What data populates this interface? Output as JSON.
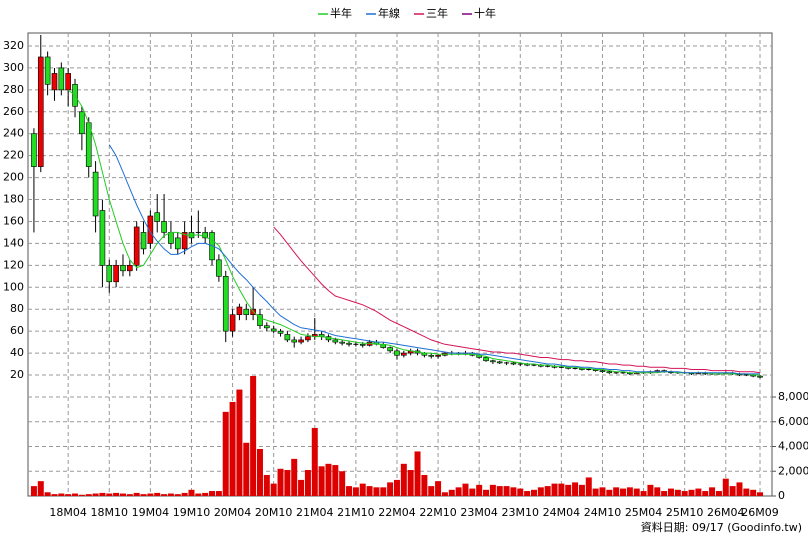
{
  "chart_data": {
    "type": "candlestick",
    "note": "資料日期: 09/17  (Goodinfo.tw)",
    "up_color": "#ee0000",
    "down_color": "#22dd22",
    "volume_color": "#dd0000",
    "grid": true,
    "categories": [
      null,
      null,
      null,
      null,
      null,
      "18M04",
      null,
      null,
      null,
      null,
      null,
      "18M10",
      null,
      null,
      null,
      null,
      null,
      "19M04",
      null,
      null,
      null,
      null,
      null,
      "19M10",
      null,
      null,
      null,
      null,
      null,
      "20M04",
      null,
      null,
      null,
      null,
      null,
      "20M10",
      null,
      null,
      null,
      null,
      null,
      "21M04",
      null,
      null,
      null,
      null,
      null,
      "21M10",
      null,
      null,
      null,
      null,
      null,
      "22M04",
      null,
      null,
      null,
      null,
      null,
      "22M10",
      null,
      null,
      null,
      null,
      null,
      "23M04",
      null,
      null,
      null,
      null,
      null,
      "23M10",
      null,
      null,
      null,
      null,
      null,
      "24M04",
      null,
      null,
      null,
      null,
      null,
      "24M10",
      null,
      null,
      null,
      null,
      null,
      "25M04",
      null,
      null,
      null,
      null,
      null,
      "25M10",
      null,
      null,
      null,
      null,
      null,
      "26M04",
      null,
      null,
      null,
      null,
      "26M09"
    ],
    "candles": [
      [
        240,
        245,
        150,
        210
      ],
      [
        210,
        330,
        205,
        310
      ],
      [
        310,
        315,
        275,
        285
      ],
      [
        280,
        300,
        270,
        295
      ],
      [
        300,
        305,
        275,
        280
      ],
      [
        280,
        300,
        265,
        295
      ],
      [
        285,
        290,
        255,
        265
      ],
      [
        260,
        265,
        225,
        240
      ],
      [
        250,
        255,
        200,
        210
      ],
      [
        205,
        215,
        150,
        165
      ],
      [
        170,
        180,
        100,
        120
      ],
      [
        120,
        125,
        95,
        105
      ],
      [
        105,
        125,
        100,
        120
      ],
      [
        120,
        130,
        110,
        115
      ],
      [
        115,
        125,
        110,
        120
      ],
      [
        120,
        160,
        115,
        155
      ],
      [
        150,
        160,
        130,
        135
      ],
      [
        140,
        170,
        135,
        165
      ],
      [
        168,
        185,
        150,
        160
      ],
      [
        160,
        185,
        145,
        150
      ],
      [
        150,
        160,
        135,
        140
      ],
      [
        145,
        150,
        130,
        135
      ],
      [
        135,
        160,
        130,
        150
      ],
      [
        150,
        165,
        140,
        145
      ],
      [
        150,
        170,
        145,
        150
      ],
      [
        150,
        155,
        140,
        145
      ],
      [
        150,
        152,
        120,
        125
      ],
      [
        125,
        130,
        105,
        110
      ],
      [
        110,
        115,
        50,
        60
      ],
      [
        60,
        80,
        55,
        75
      ],
      [
        75,
        85,
        70,
        82
      ],
      [
        80,
        85,
        70,
        75
      ],
      [
        75,
        100,
        70,
        80
      ],
      [
        75,
        80,
        62,
        65
      ],
      [
        65,
        68,
        60,
        63
      ],
      [
        62,
        65,
        58,
        60
      ],
      [
        60,
        62,
        55,
        58
      ],
      [
        57,
        60,
        50,
        52
      ],
      [
        52,
        55,
        45,
        50
      ],
      [
        50,
        55,
        48,
        52
      ],
      [
        52,
        58,
        50,
        55
      ],
      [
        55,
        72,
        52,
        57
      ],
      [
        57,
        60,
        52,
        55
      ],
      [
        55,
        57,
        50,
        52
      ],
      [
        52,
        54,
        48,
        50
      ],
      [
        50,
        52,
        47,
        49
      ],
      [
        49,
        51,
        46,
        48
      ],
      [
        48,
        50,
        46,
        48
      ],
      [
        48,
        50,
        45,
        47
      ],
      [
        47,
        52,
        46,
        50
      ],
      [
        50,
        52,
        47,
        48
      ],
      [
        48,
        50,
        44,
        45
      ],
      [
        45,
        46,
        40,
        42
      ],
      [
        42,
        44,
        34,
        38
      ],
      [
        38,
        42,
        36,
        40
      ],
      [
        40,
        44,
        38,
        42
      ],
      [
        42,
        44,
        38,
        40
      ],
      [
        40,
        41,
        36,
        38
      ],
      [
        38,
        40,
        35,
        37
      ],
      [
        37,
        39,
        35,
        38
      ],
      [
        38,
        41,
        37,
        40
      ],
      [
        40,
        42,
        38,
        40
      ],
      [
        40,
        41,
        38,
        39
      ],
      [
        39,
        42,
        38,
        40
      ],
      [
        40,
        41,
        37,
        38
      ],
      [
        38,
        39,
        35,
        36
      ],
      [
        36,
        37,
        32,
        33
      ],
      [
        33,
        34,
        30,
        32
      ],
      [
        32,
        33,
        30,
        31
      ],
      [
        31,
        32,
        29,
        31
      ],
      [
        31,
        32,
        29,
        30
      ],
      [
        30,
        31,
        28,
        30
      ],
      [
        30,
        31,
        28,
        29
      ],
      [
        29,
        30,
        28,
        29
      ],
      [
        29,
        30,
        27,
        28
      ],
      [
        28,
        29,
        27,
        28
      ],
      [
        28,
        29,
        26,
        27
      ],
      [
        27,
        28,
        26,
        27
      ],
      [
        27,
        28,
        25,
        26
      ],
      [
        26,
        27,
        25,
        26
      ],
      [
        26,
        27,
        24,
        25
      ],
      [
        25,
        26,
        24,
        25
      ],
      [
        25,
        26,
        23,
        24
      ],
      [
        24,
        25,
        22,
        23
      ],
      [
        23,
        24,
        21,
        22
      ],
      [
        22,
        23,
        21,
        22
      ],
      [
        22,
        23,
        21,
        22
      ],
      [
        22,
        23,
        20,
        21
      ],
      [
        21,
        23,
        21,
        22
      ],
      [
        22,
        23,
        21,
        22
      ],
      [
        22,
        24,
        21,
        23
      ],
      [
        23,
        25,
        22,
        24
      ],
      [
        24,
        25,
        22,
        23
      ],
      [
        23,
        24,
        21,
        22
      ],
      [
        22,
        23,
        21,
        22
      ],
      [
        22,
        23,
        21,
        22
      ],
      [
        22,
        22,
        20,
        21
      ],
      [
        21,
        23,
        21,
        22
      ],
      [
        22,
        23,
        20,
        21
      ],
      [
        21,
        22,
        20,
        21
      ],
      [
        21,
        22,
        20,
        21
      ],
      [
        21,
        23,
        21,
        22
      ],
      [
        22,
        23,
        20,
        21
      ],
      [
        21,
        22,
        19,
        20
      ],
      [
        20,
        21,
        19,
        20
      ],
      [
        20,
        21,
        18,
        19
      ],
      [
        19,
        20,
        17,
        18
      ]
    ],
    "volume": [
      800,
      1200,
      300,
      150,
      200,
      150,
      200,
      100,
      150,
      200,
      250,
      200,
      250,
      200,
      150,
      250,
      150,
      200,
      250,
      150,
      200,
      150,
      250,
      500,
      200,
      250,
      400,
      400,
      6800,
      7600,
      8600,
      4300,
      9700,
      3800,
      1700,
      1000,
      2200,
      2100,
      3000,
      1300,
      2100,
      5500,
      2400,
      2600,
      2500,
      2000,
      800,
      700,
      1000,
      800,
      700,
      700,
      1100,
      1300,
      2600,
      2100,
      3600,
      1700,
      800,
      1200,
      300,
      500,
      700,
      1000,
      600,
      900,
      500,
      900,
      800,
      800,
      700,
      600,
      400,
      500,
      700,
      800,
      1000,
      1000,
      900,
      1100,
      900,
      1500,
      600,
      700,
      500,
      700,
      600,
      700,
      600,
      400,
      900,
      700,
      400,
      600,
      500,
      400,
      500,
      600,
      400,
      700,
      400,
      1400,
      800,
      1100,
      600,
      500,
      300
    ],
    "series": [
      {
        "name": "半年",
        "color": "#22cc22",
        "values": [
          null,
          null,
          null,
          null,
          null,
          280,
          275,
          265,
          250,
          230,
          205,
          180,
          160,
          140,
          125,
          118,
          120,
          130,
          140,
          147,
          150,
          150,
          148,
          147,
          148,
          146,
          143,
          138,
          125,
          110,
          98,
          87,
          78,
          72,
          70,
          68,
          66,
          63,
          60,
          57,
          56,
          55,
          55,
          54,
          53,
          52,
          51,
          50,
          49,
          49,
          48,
          48,
          47,
          45,
          43,
          42,
          41,
          40,
          40,
          39,
          39,
          39,
          39,
          39,
          39,
          38,
          37,
          35,
          34,
          33,
          32,
          31,
          30,
          30,
          29,
          29,
          28,
          28,
          27,
          27,
          26,
          26,
          25,
          25,
          24,
          23,
          23,
          22,
          22,
          22,
          22,
          22,
          23,
          23,
          22,
          22,
          22,
          22,
          22,
          21,
          21,
          21,
          21,
          21,
          21,
          20,
          20
        ]
      },
      {
        "name": "年線",
        "color": "#1f6fd6",
        "values": [
          null,
          null,
          null,
          null,
          null,
          null,
          null,
          null,
          null,
          null,
          null,
          230,
          220,
          205,
          190,
          175,
          162,
          150,
          142,
          135,
          130,
          130,
          133,
          137,
          140,
          140,
          138,
          135,
          128,
          120,
          113,
          107,
          100,
          93,
          87,
          80,
          74,
          70,
          66,
          63,
          62,
          61,
          60,
          58,
          56,
          55,
          54,
          53,
          52,
          51,
          50,
          50,
          49,
          48,
          47,
          46,
          45,
          44,
          43,
          42,
          41,
          40,
          40,
          40,
          40,
          39,
          39,
          38,
          37,
          36,
          35,
          34,
          33,
          32,
          31,
          30,
          30,
          29,
          28,
          28,
          27,
          27,
          26,
          26,
          25,
          25,
          24,
          24,
          23,
          23,
          23,
          23,
          23,
          23,
          23,
          22,
          22,
          22,
          22,
          22,
          22,
          22,
          22,
          21,
          21,
          21,
          21
        ]
      },
      {
        "name": "三年",
        "color": "#d4145a",
        "values": [
          null,
          null,
          null,
          null,
          null,
          null,
          null,
          null,
          null,
          null,
          null,
          null,
          null,
          null,
          null,
          null,
          null,
          null,
          null,
          null,
          null,
          null,
          null,
          null,
          null,
          null,
          null,
          null,
          null,
          null,
          null,
          null,
          null,
          null,
          null,
          155,
          148,
          140,
          132,
          124,
          117,
          110,
          103,
          97,
          92,
          90,
          88,
          86,
          84,
          81,
          78,
          74,
          70,
          67,
          64,
          61,
          58,
          55,
          52,
          50,
          48,
          47,
          46,
          45,
          44,
          43,
          42,
          41,
          41,
          40,
          40,
          39,
          38,
          37,
          36,
          36,
          35,
          34,
          34,
          33,
          33,
          32,
          32,
          31,
          30,
          30,
          29,
          29,
          28,
          28,
          27,
          27,
          27,
          26,
          26,
          26,
          25,
          25,
          25,
          24,
          24,
          24,
          24,
          23,
          23,
          23,
          22
        ]
      },
      {
        "name": "十年",
        "color": "#800080",
        "values": [
          null,
          null,
          null,
          null,
          null,
          null,
          null,
          null,
          null,
          null,
          null,
          null,
          null,
          null,
          null,
          null,
          null,
          null,
          null,
          null,
          null,
          null,
          null,
          null,
          null,
          null,
          null,
          null,
          null,
          null,
          null,
          null,
          null,
          null,
          null,
          null,
          null,
          null,
          null,
          null,
          null,
          null,
          null,
          null,
          null,
          null,
          null,
          null,
          null,
          null,
          null,
          null,
          null,
          null,
          null,
          null,
          null,
          null,
          null,
          null,
          null,
          null,
          null,
          null,
          null,
          null,
          null,
          null,
          null,
          null,
          null,
          null,
          null,
          null,
          null,
          null,
          null,
          null,
          null,
          null,
          null,
          null,
          null,
          null,
          null,
          null,
          null,
          null,
          null,
          null,
          null,
          null,
          null,
          null,
          null,
          null,
          null,
          null,
          null,
          null,
          null,
          null,
          null,
          null,
          null,
          null,
          null
        ]
      }
    ],
    "ylim": [
      20,
      320
    ],
    "yticks": [
      20,
      40,
      60,
      80,
      100,
      120,
      140,
      160,
      180,
      200,
      220,
      240,
      260,
      280,
      300,
      320
    ],
    "y2lim": [
      0,
      8000
    ],
    "y2ticks": [
      0,
      {
        "value": 2000,
        "label": "2,000"
      },
      {
        "value": 4000,
        "label": "4,000"
      },
      {
        "value": 6000,
        "label": "6,000"
      },
      {
        "value": 8000,
        "label": "8,000"
      }
    ]
  }
}
